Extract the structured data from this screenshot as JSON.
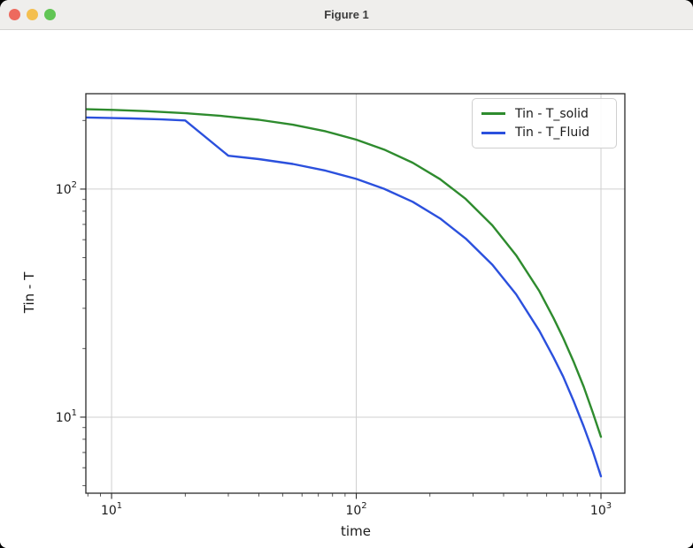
{
  "window": {
    "title": "Figure 1"
  },
  "titlebar_buttons": {
    "close_color": "#ed6a5e",
    "minimize_color": "#f4bf4f",
    "zoom_color": "#61c554"
  },
  "chart_data": {
    "type": "line",
    "title": "",
    "xlabel": "time",
    "ylabel": "Tin - T",
    "x_scale": "log",
    "y_scale": "log",
    "xlim": [
      7.85,
      1252
    ],
    "ylim": [
      4.64,
      262
    ],
    "grid": true,
    "grid_color": "#cfcfcf",
    "spine_color": "#2b2b2b",
    "tick_label_color": "#1a1a1a",
    "legend_position": "upper right",
    "x_major_ticks": [
      10,
      100,
      1000
    ],
    "x_major_tick_labels": [
      "10^1",
      "10^2",
      "10^3"
    ],
    "y_major_ticks": [
      10,
      100
    ],
    "y_major_tick_labels": [
      "10^1",
      "10^2"
    ],
    "series": [
      {
        "name": "Tin - T_solid",
        "color": "#2e8b2e",
        "x": [
          7.9,
          10,
          14,
          20,
          28,
          40,
          55,
          75,
          100,
          130,
          170,
          220,
          280,
          360,
          450,
          560,
          640,
          700,
          775,
          850,
          925,
          1000
        ],
        "y": [
          224,
          222.5,
          219.5,
          215.2,
          209.5,
          201.3,
          191.5,
          179.2,
          164.8,
          149.1,
          130.5,
          110.5,
          90.5,
          69.3,
          51.3,
          35.7,
          27.2,
          22.3,
          17.4,
          13.6,
          10.5,
          8.2
        ]
      },
      {
        "name": "Tin - T_Fluid",
        "color": "#2b50dd",
        "x": [
          7.9,
          12,
          16,
          20,
          30,
          40,
          55,
          75,
          100,
          130,
          170,
          220,
          280,
          360,
          450,
          560,
          640,
          700,
          775,
          850,
          925,
          1000
        ],
        "y": [
          206,
          204,
          202,
          200,
          140,
          135.4,
          128.9,
          120.4,
          110.8,
          100.3,
          88.0,
          74.4,
          60.7,
          46.6,
          34.6,
          23.9,
          18.3,
          15.1,
          11.7,
          9.1,
          7.1,
          5.5
        ]
      }
    ]
  }
}
